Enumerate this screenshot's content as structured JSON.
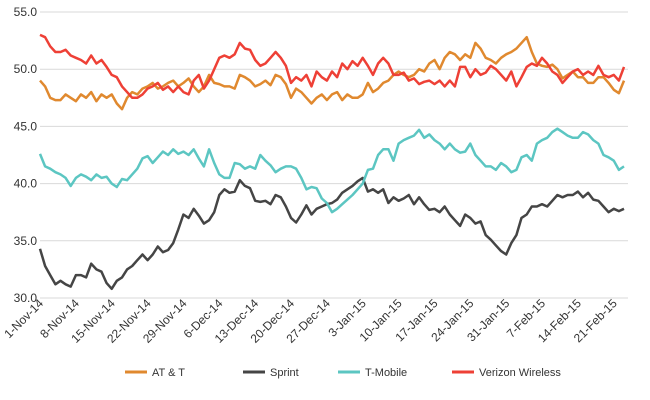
{
  "chart_data": {
    "type": "line",
    "categories": [
      "1-Nov-14",
      null,
      null,
      null,
      null,
      null,
      null,
      "8-Nov-14",
      null,
      null,
      null,
      null,
      null,
      null,
      "15-Nov-14",
      null,
      null,
      null,
      null,
      null,
      null,
      "22-Nov-14",
      null,
      null,
      null,
      null,
      null,
      null,
      "29-Nov-14",
      null,
      null,
      null,
      null,
      null,
      null,
      "6-Dec-14",
      null,
      null,
      null,
      null,
      null,
      null,
      "13-Dec-14",
      null,
      null,
      null,
      null,
      null,
      null,
      "20-Dec-14",
      null,
      null,
      null,
      null,
      null,
      null,
      "27-Dec-14",
      null,
      null,
      null,
      null,
      null,
      null,
      "3-Jan-15",
      null,
      null,
      null,
      null,
      null,
      null,
      "10-Jan-15",
      null,
      null,
      null,
      null,
      null,
      null,
      "17-Jan-15",
      null,
      null,
      null,
      null,
      null,
      null,
      "24-Jan-15",
      null,
      null,
      null,
      null,
      null,
      null,
      "31-Jan-15",
      null,
      null,
      null,
      null,
      null,
      null,
      "7-Feb-15",
      null,
      null,
      null,
      null,
      null,
      null,
      "14-Feb-15",
      null,
      null,
      null,
      null,
      null,
      null,
      "21-Feb-15",
      null,
      null
    ],
    "series": [
      {
        "name": "AT & T",
        "color": "#e0892f",
        "values": [
          49,
          48.5,
          47.5,
          47.3,
          47.3,
          47.8,
          47.5,
          47.2,
          47.8,
          47.5,
          48,
          47.2,
          47.8,
          47.5,
          47.8,
          47,
          46.5,
          47.5,
          48,
          47.8,
          48.3,
          48.5,
          48.8,
          48.3,
          48.5,
          48.8,
          49,
          48.5,
          48.8,
          49.2,
          48.5,
          48,
          48.5,
          49.5,
          48.8,
          48.7,
          48.5,
          48.5,
          48.3,
          49.5,
          49.3,
          49,
          48.5,
          48.7,
          49,
          48.6,
          49.5,
          49.3,
          48.7,
          47.5,
          48.3,
          48,
          47.5,
          47,
          47.5,
          47.8,
          47.3,
          47.8,
          48,
          47.3,
          47.8,
          47.5,
          47.5,
          47.8,
          48.8,
          48,
          48.3,
          48.8,
          49,
          49.5,
          49.8,
          49.5,
          49.3,
          49.5,
          50,
          49.8,
          50.5,
          50.8,
          50,
          51,
          51.5,
          51.3,
          50.8,
          51.3,
          51,
          52.3,
          51.8,
          51,
          50.8,
          50.5,
          51,
          51.3,
          51.5,
          51.8,
          52.3,
          52.8,
          51.5,
          50.5,
          50.3,
          50.2,
          50.4,
          50,
          49.2,
          49.5,
          49.8,
          49.3,
          49.3,
          48.8,
          48.8,
          49.3,
          49.3,
          48.8,
          48.2,
          47.9,
          49
        ]
      },
      {
        "name": "Sprint",
        "color": "#454545",
        "values": [
          34.3,
          32.8,
          32,
          31.2,
          31.5,
          31.2,
          31,
          32,
          32,
          31.8,
          33,
          32.5,
          32.3,
          31.3,
          30.8,
          31.5,
          31.8,
          32.5,
          32.8,
          33.3,
          33.8,
          33.3,
          33.8,
          34.5,
          34,
          34.2,
          34.8,
          36,
          37.3,
          37,
          37.8,
          37.2,
          36.5,
          36.8,
          37.5,
          39,
          39.5,
          39.2,
          39.3,
          40.3,
          39.8,
          39.6,
          38.5,
          38.4,
          38.5,
          38.2,
          39,
          38.8,
          38,
          37,
          36.6,
          37.3,
          38.1,
          37.3,
          37.8,
          38,
          38.2,
          38.3,
          38.6,
          39.2,
          39.5,
          39.8,
          40.2,
          40.5,
          39.3,
          39.5,
          39.2,
          39.5,
          38.3,
          38.8,
          38.5,
          38.7,
          39,
          38.2,
          38.8,
          38.2,
          37.7,
          37.8,
          37.5,
          38,
          37.3,
          36.8,
          36.3,
          37.3,
          37,
          36.5,
          36.7,
          35.5,
          35.1,
          34.6,
          34.1,
          33.8,
          34.8,
          35.5,
          37,
          37.3,
          38,
          38,
          38.2,
          38,
          38.5,
          39,
          38.8,
          39,
          39,
          39.3,
          38.8,
          39.2,
          38.6,
          38.5,
          38,
          37.5,
          37.8,
          37.6,
          37.8
        ]
      },
      {
        "name": "T-Mobile",
        "color": "#5cc6c2",
        "values": [
          42.6,
          41.5,
          41.3,
          41,
          40.8,
          40.5,
          39.8,
          40.5,
          40.8,
          40.6,
          40.3,
          40.8,
          40.5,
          40.6,
          40,
          39.7,
          40.4,
          40.3,
          40.8,
          41.3,
          42.2,
          42.4,
          41.8,
          42.3,
          42.8,
          42.5,
          43,
          42.6,
          42.8,
          42.5,
          43,
          42.2,
          41.5,
          43,
          41.8,
          40.8,
          40.5,
          40.5,
          41.8,
          41.7,
          41.3,
          41.5,
          41.3,
          42.5,
          42,
          41.6,
          41,
          41.3,
          41.5,
          41.5,
          41.3,
          40.5,
          39.5,
          39.7,
          39.6,
          38.7,
          38.3,
          37.5,
          37.8,
          38.2,
          38.6,
          39,
          39.5,
          40,
          41.2,
          41.3,
          42.5,
          43,
          43,
          42,
          43.5,
          43.8,
          44,
          44.2,
          44.7,
          44,
          44.3,
          43.8,
          43.5,
          43,
          43.5,
          43,
          42.7,
          42.8,
          43.5,
          42.5,
          42,
          41.5,
          41.5,
          41.2,
          41.8,
          41.5,
          41,
          41.2,
          42.3,
          42.5,
          42,
          43.5,
          43.8,
          44,
          44.5,
          44.8,
          44.5,
          44.2,
          44,
          44,
          44.5,
          44.3,
          43.8,
          43.5,
          42.5,
          42.3,
          42,
          41.2,
          41.5
        ]
      },
      {
        "name": "Verizon Wireless",
        "color": "#ee4036",
        "values": [
          53,
          52.8,
          52,
          51.5,
          51.5,
          51.7,
          51.2,
          51,
          50.8,
          50.5,
          51.2,
          50.5,
          50.8,
          50.2,
          49.5,
          49.3,
          48.5,
          48,
          47.5,
          47.5,
          47.8,
          48.3,
          48.5,
          48.8,
          48.2,
          48.5,
          48,
          48.5,
          48,
          47.8,
          49,
          49.5,
          48.3,
          49,
          50,
          51,
          51.2,
          51,
          51.3,
          52.3,
          51.8,
          51.7,
          50.8,
          50.3,
          50.5,
          51,
          51.5,
          51,
          50.3,
          48.8,
          49.3,
          49,
          49.5,
          48.5,
          49.8,
          49.3,
          49,
          49.8,
          49.3,
          50.5,
          50,
          50.7,
          50.3,
          51,
          50.3,
          49.5,
          50.5,
          51,
          50.5,
          49.5,
          49.5,
          49.7,
          49,
          49.2,
          48.7,
          48.9,
          49,
          48.7,
          49,
          48.5,
          49,
          48.5,
          50.2,
          50.2,
          49.3,
          50,
          49.5,
          49.7,
          50.3,
          50,
          49.5,
          49,
          49.8,
          48.5,
          49.3,
          50.2,
          50.5,
          50.3,
          51,
          50.5,
          49.8,
          49.5,
          48.8,
          49.3,
          49.8,
          50,
          49.5,
          49.8,
          49.5,
          50.3,
          49.5,
          49.3,
          49.5,
          49,
          50.2
        ]
      }
    ],
    "ylim": [
      30,
      55
    ],
    "yticks": [
      {
        "value": 30,
        "label": "30.0"
      },
      {
        "value": 35,
        "label": "35.0"
      },
      {
        "value": 40,
        "label": "40.0"
      },
      {
        "value": 45,
        "label": "45.0"
      },
      {
        "value": 50,
        "label": "50.0"
      },
      {
        "value": 55,
        "label": "55.0"
      }
    ],
    "grid": true,
    "legend": "bottom"
  }
}
